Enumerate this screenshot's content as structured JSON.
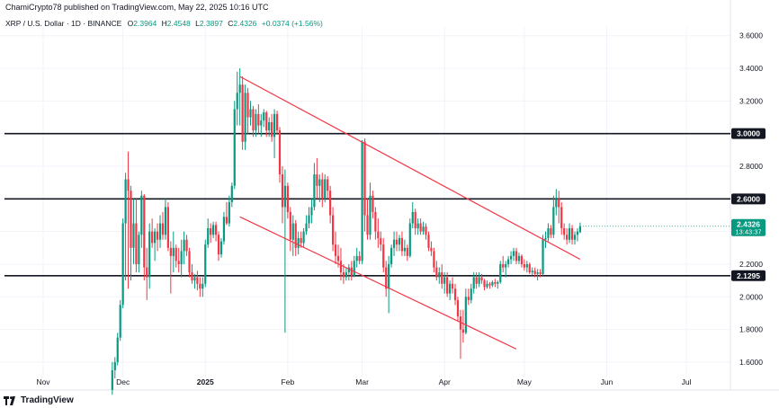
{
  "header": {
    "publisher": "ChamiCrypto78 published on TradingView.com, May 22, 2025 10:16 UTC",
    "symbol": "XRP / U.S. Dollar · 1D · BINANCE",
    "ohlc": [
      {
        "label": "O",
        "value": "2.3964"
      },
      {
        "label": "H",
        "value": "2.4548"
      },
      {
        "label": "L",
        "value": "2.3897"
      },
      {
        "label": "C",
        "value": "2.4326"
      }
    ],
    "change": "+0.0374 (+1.56%)"
  },
  "footer": {
    "brand": "TradingView"
  },
  "colors": {
    "up": "#089981",
    "down": "#f23645",
    "channel": "#f23645",
    "level": "#131722",
    "grid": "#f0f3fa",
    "axis_text": "#131722"
  },
  "chart_data": {
    "type": "candlestick",
    "y_ticks": [
      "3.6000",
      "3.4000",
      "3.2000",
      "3.0000",
      "2.8000",
      "2.6000",
      "2.4000",
      "2.2000",
      "2.0000",
      "1.8000",
      "1.6000"
    ],
    "ylim": [
      1.55,
      3.68
    ],
    "x_ticks": [
      "Nov",
      "Dec",
      "2025",
      "Feb",
      "Mar",
      "Apr",
      "May",
      "Jun",
      "Jul"
    ],
    "horizontal_levels": [
      {
        "value": 3.0,
        "label": "3.0000"
      },
      {
        "value": 2.6,
        "label": "2.6000"
      },
      {
        "value": 2.1295,
        "label": "2.1295"
      }
    ],
    "last_price": {
      "value": 2.4326,
      "label": "2.4326",
      "countdown": "13:43:37"
    },
    "channel_upper": [
      {
        "x": "2025-01-14",
        "y": 3.35
      },
      {
        "x": "2025-05-22",
        "y": 2.23
      }
    ],
    "channel_lower": [
      {
        "x": "2025-01-14",
        "y": 2.49
      },
      {
        "x": "2025-04-28",
        "y": 1.68
      }
    ],
    "candles": [
      [
        "2024-11-27",
        1.43,
        1.6,
        1.4,
        1.55
      ],
      [
        "2024-11-28",
        1.55,
        1.63,
        1.5,
        1.6
      ],
      [
        "2024-11-29",
        1.6,
        1.78,
        1.58,
        1.75
      ],
      [
        "2024-11-30",
        1.75,
        1.98,
        1.73,
        1.95
      ],
      [
        "2024-12-01",
        1.95,
        2.48,
        1.93,
        2.45
      ],
      [
        "2024-12-02",
        2.45,
        2.76,
        2.1,
        2.72
      ],
      [
        "2024-12-03",
        2.72,
        2.89,
        2.05,
        2.65
      ],
      [
        "2024-12-04",
        2.65,
        2.68,
        2.1,
        2.3
      ],
      [
        "2024-12-05",
        2.3,
        2.6,
        2.2,
        2.45
      ],
      [
        "2024-12-06",
        2.45,
        2.6,
        2.15,
        2.2
      ],
      [
        "2024-12-07",
        2.2,
        2.4,
        2.15,
        2.38
      ],
      [
        "2024-12-08",
        2.38,
        2.65,
        2.3,
        2.62
      ],
      [
        "2024-12-09",
        2.62,
        2.63,
        2.1,
        2.18
      ],
      [
        "2024-12-10",
        2.18,
        2.3,
        1.98,
        2.12
      ],
      [
        "2024-12-11",
        2.12,
        2.45,
        2.05,
        2.4
      ],
      [
        "2024-12-12",
        2.4,
        2.48,
        2.3,
        2.33
      ],
      [
        "2024-12-13",
        2.33,
        2.42,
        2.22,
        2.4
      ],
      [
        "2024-12-14",
        2.4,
        2.45,
        2.28,
        2.35
      ],
      [
        "2024-12-15",
        2.35,
        2.5,
        2.3,
        2.45
      ],
      [
        "2024-12-16",
        2.45,
        2.52,
        2.35,
        2.38
      ],
      [
        "2024-12-17",
        2.38,
        2.6,
        2.35,
        2.55
      ],
      [
        "2024-12-18",
        2.55,
        2.58,
        2.28,
        2.3
      ],
      [
        "2024-12-19",
        2.3,
        2.34,
        2.02,
        2.25
      ],
      [
        "2024-12-20",
        2.25,
        2.4,
        2.15,
        2.3
      ],
      [
        "2024-12-21",
        2.3,
        2.32,
        2.18,
        2.22
      ],
      [
        "2024-12-22",
        2.22,
        2.3,
        2.15,
        2.2
      ],
      [
        "2024-12-23",
        2.2,
        2.35,
        2.12,
        2.28
      ],
      [
        "2024-12-24",
        2.28,
        2.4,
        2.2,
        2.35
      ],
      [
        "2024-12-25",
        2.35,
        2.38,
        2.25,
        2.28
      ],
      [
        "2024-12-26",
        2.28,
        2.3,
        2.12,
        2.15
      ],
      [
        "2024-12-27",
        2.15,
        2.2,
        2.08,
        2.1
      ],
      [
        "2024-12-28",
        2.1,
        2.14,
        2.05,
        2.12
      ],
      [
        "2024-12-29",
        2.12,
        2.16,
        2.04,
        2.08
      ],
      [
        "2024-12-30",
        2.08,
        2.12,
        2.0,
        2.05
      ],
      [
        "2024-12-31",
        2.05,
        2.12,
        2.0,
        2.08
      ],
      [
        "2025-01-01",
        2.08,
        2.35,
        2.06,
        2.32
      ],
      [
        "2025-01-02",
        2.32,
        2.48,
        2.3,
        2.42
      ],
      [
        "2025-01-03",
        2.42,
        2.45,
        2.33,
        2.38
      ],
      [
        "2025-01-04",
        2.38,
        2.46,
        2.36,
        2.44
      ],
      [
        "2025-01-05",
        2.44,
        2.46,
        2.34,
        2.38
      ],
      [
        "2025-01-06",
        2.38,
        2.4,
        2.22,
        2.26
      ],
      [
        "2025-01-07",
        2.26,
        2.36,
        2.24,
        2.34
      ],
      [
        "2025-01-08",
        2.34,
        2.52,
        2.32,
        2.49
      ],
      [
        "2025-01-09",
        2.49,
        2.58,
        2.44,
        2.45
      ],
      [
        "2025-01-10",
        2.45,
        2.62,
        2.43,
        2.58
      ],
      [
        "2025-01-11",
        2.58,
        2.7,
        2.55,
        2.68
      ],
      [
        "2025-01-12",
        2.68,
        3.2,
        2.66,
        3.15
      ],
      [
        "2025-01-13",
        3.15,
        3.38,
        3.05,
        3.25
      ],
      [
        "2025-01-14",
        3.25,
        3.4,
        3.05,
        3.3
      ],
      [
        "2025-01-15",
        3.3,
        3.35,
        2.9,
        2.95
      ],
      [
        "2025-01-16",
        2.95,
        3.3,
        2.9,
        3.25
      ],
      [
        "2025-01-17",
        3.25,
        3.28,
        3.0,
        3.1
      ],
      [
        "2025-01-18",
        3.1,
        3.2,
        3.05,
        3.15
      ],
      [
        "2025-01-19",
        3.15,
        3.17,
        2.98,
        3.02
      ],
      [
        "2025-01-20",
        3.02,
        3.15,
        2.98,
        3.12
      ],
      [
        "2025-01-21",
        3.12,
        3.18,
        3.0,
        3.05
      ],
      [
        "2025-01-22",
        3.05,
        3.12,
        2.98,
        3.08
      ],
      [
        "2025-01-23",
        3.08,
        3.15,
        3.04,
        3.13
      ],
      [
        "2025-01-24",
        3.13,
        3.14,
        2.98,
        3.02
      ],
      [
        "2025-01-25",
        3.02,
        3.1,
        2.98,
        3.07
      ],
      [
        "2025-01-26",
        3.07,
        3.12,
        2.95,
        2.98
      ],
      [
        "2025-01-27",
        2.98,
        3.15,
        2.85,
        3.12
      ],
      [
        "2025-01-28",
        3.12,
        3.14,
        3.0,
        3.02
      ],
      [
        "2025-01-29",
        3.02,
        3.04,
        2.7,
        2.75
      ],
      [
        "2025-01-30",
        2.75,
        2.8,
        2.45,
        2.55
      ],
      [
        "2025-01-31",
        2.55,
        2.78,
        1.78,
        2.68
      ],
      [
        "2025-02-01",
        2.68,
        2.7,
        2.48,
        2.52
      ],
      [
        "2025-02-02",
        2.52,
        2.55,
        2.28,
        2.35
      ],
      [
        "2025-02-03",
        2.35,
        2.5,
        2.25,
        2.45
      ],
      [
        "2025-02-04",
        2.45,
        2.47,
        2.25,
        2.3
      ],
      [
        "2025-02-05",
        2.3,
        2.4,
        2.26,
        2.36
      ],
      [
        "2025-02-06",
        2.36,
        2.4,
        2.3,
        2.33
      ],
      [
        "2025-02-07",
        2.33,
        2.42,
        2.3,
        2.4
      ],
      [
        "2025-02-08",
        2.4,
        2.5,
        2.38,
        2.45
      ],
      [
        "2025-02-09",
        2.45,
        2.55,
        2.42,
        2.5
      ],
      [
        "2025-02-10",
        2.5,
        2.6,
        2.45,
        2.55
      ],
      [
        "2025-02-11",
        2.55,
        2.82,
        2.53,
        2.75
      ],
      [
        "2025-02-12",
        2.75,
        2.85,
        2.6,
        2.68
      ],
      [
        "2025-02-13",
        2.68,
        2.75,
        2.58,
        2.72
      ],
      [
        "2025-02-14",
        2.72,
        2.76,
        2.55,
        2.6
      ],
      [
        "2025-02-15",
        2.6,
        2.75,
        2.58,
        2.72
      ],
      [
        "2025-02-16",
        2.72,
        2.74,
        2.6,
        2.65
      ],
      [
        "2025-02-17",
        2.65,
        2.68,
        2.45,
        2.5
      ],
      [
        "2025-02-18",
        2.5,
        2.55,
        2.28,
        2.32
      ],
      [
        "2025-02-19",
        2.32,
        2.4,
        2.2,
        2.25
      ],
      [
        "2025-02-20",
        2.25,
        2.32,
        2.18,
        2.22
      ],
      [
        "2025-02-21",
        2.22,
        2.3,
        2.1,
        2.15
      ],
      [
        "2025-02-22",
        2.15,
        2.2,
        2.08,
        2.12
      ],
      [
        "2025-02-23",
        2.12,
        2.18,
        2.1,
        2.15
      ],
      [
        "2025-02-24",
        2.15,
        2.2,
        2.1,
        2.18
      ],
      [
        "2025-02-25",
        2.18,
        2.22,
        2.1,
        2.13
      ],
      [
        "2025-02-26",
        2.13,
        2.25,
        2.12,
        2.22
      ],
      [
        "2025-02-27",
        2.22,
        2.3,
        2.18,
        2.25
      ],
      [
        "2025-02-28",
        2.25,
        2.28,
        2.2,
        2.22
      ],
      [
        "2025-03-01",
        2.22,
        2.96,
        2.2,
        2.95
      ],
      [
        "2025-03-02",
        2.95,
        2.97,
        2.4,
        2.5
      ],
      [
        "2025-03-03",
        2.5,
        2.6,
        2.35,
        2.38
      ],
      [
        "2025-03-04",
        2.38,
        2.7,
        2.35,
        2.62
      ],
      [
        "2025-03-05",
        2.62,
        2.65,
        2.48,
        2.52
      ],
      [
        "2025-03-06",
        2.52,
        2.55,
        2.35,
        2.4
      ],
      [
        "2025-03-07",
        2.4,
        2.48,
        2.3,
        2.36
      ],
      [
        "2025-03-08",
        2.36,
        2.4,
        2.28,
        2.32
      ],
      [
        "2025-03-09",
        2.32,
        2.36,
        2.15,
        2.18
      ],
      [
        "2025-03-10",
        2.18,
        2.22,
        2.0,
        2.05
      ],
      [
        "2025-03-11",
        2.05,
        2.25,
        1.9,
        2.2
      ],
      [
        "2025-03-12",
        2.2,
        2.32,
        2.18,
        2.3
      ],
      [
        "2025-03-13",
        2.3,
        2.4,
        2.25,
        2.35
      ],
      [
        "2025-03-14",
        2.35,
        2.4,
        2.28,
        2.32
      ],
      [
        "2025-03-15",
        2.32,
        2.38,
        2.28,
        2.36
      ],
      [
        "2025-03-16",
        2.36,
        2.4,
        2.25,
        2.28
      ],
      [
        "2025-03-17",
        2.28,
        2.35,
        2.25,
        2.3
      ],
      [
        "2025-03-18",
        2.3,
        2.32,
        2.22,
        2.25
      ],
      [
        "2025-03-19",
        2.25,
        2.48,
        2.24,
        2.45
      ],
      [
        "2025-03-20",
        2.45,
        2.58,
        2.42,
        2.52
      ],
      [
        "2025-03-21",
        2.52,
        2.54,
        2.38,
        2.42
      ],
      [
        "2025-03-22",
        2.42,
        2.48,
        2.38,
        2.45
      ],
      [
        "2025-03-23",
        2.45,
        2.48,
        2.38,
        2.4
      ],
      [
        "2025-03-24",
        2.4,
        2.46,
        2.38,
        2.43
      ],
      [
        "2025-03-25",
        2.43,
        2.45,
        2.35,
        2.38
      ],
      [
        "2025-03-26",
        2.38,
        2.4,
        2.28,
        2.3
      ],
      [
        "2025-03-27",
        2.3,
        2.34,
        2.25,
        2.28
      ],
      [
        "2025-03-28",
        2.28,
        2.3,
        2.15,
        2.18
      ],
      [
        "2025-03-29",
        2.18,
        2.22,
        2.1,
        2.12
      ],
      [
        "2025-03-30",
        2.12,
        2.18,
        2.08,
        2.15
      ],
      [
        "2025-03-31",
        2.15,
        2.2,
        2.05,
        2.08
      ],
      [
        "2025-04-01",
        2.08,
        2.15,
        2.02,
        2.12
      ],
      [
        "2025-04-02",
        2.12,
        2.15,
        2.0,
        2.02
      ],
      [
        "2025-04-03",
        2.02,
        2.1,
        1.98,
        2.08
      ],
      [
        "2025-04-04",
        2.08,
        2.12,
        2.02,
        2.05
      ],
      [
        "2025-04-05",
        2.05,
        2.08,
        1.95,
        1.98
      ],
      [
        "2025-04-06",
        1.98,
        2.0,
        1.85,
        1.88
      ],
      [
        "2025-04-07",
        1.88,
        1.92,
        1.62,
        1.8
      ],
      [
        "2025-04-08",
        1.8,
        1.92,
        1.72,
        1.78
      ],
      [
        "2025-04-09",
        1.78,
        2.05,
        1.77,
        2.0
      ],
      [
        "2025-04-10",
        2.0,
        2.05,
        1.95,
        1.98
      ],
      [
        "2025-04-11",
        1.98,
        2.08,
        1.96,
        2.05
      ],
      [
        "2025-04-12",
        2.05,
        2.15,
        2.02,
        2.12
      ],
      [
        "2025-04-13",
        2.12,
        2.15,
        2.05,
        2.08
      ],
      [
        "2025-04-14",
        2.08,
        2.15,
        2.06,
        2.12
      ],
      [
        "2025-04-15",
        2.12,
        2.14,
        2.08,
        2.1
      ],
      [
        "2025-04-16",
        2.1,
        2.11,
        2.04,
        2.06
      ],
      [
        "2025-04-17",
        2.06,
        2.1,
        2.05,
        2.08
      ],
      [
        "2025-04-18",
        2.08,
        2.09,
        2.05,
        2.07
      ],
      [
        "2025-04-19",
        2.07,
        2.1,
        2.06,
        2.09
      ],
      [
        "2025-04-20",
        2.09,
        2.11,
        2.06,
        2.08
      ],
      [
        "2025-04-21",
        2.08,
        2.1,
        2.05,
        2.09
      ],
      [
        "2025-04-22",
        2.09,
        2.22,
        2.08,
        2.2
      ],
      [
        "2025-04-23",
        2.2,
        2.25,
        2.15,
        2.18
      ],
      [
        "2025-04-24",
        2.18,
        2.22,
        2.12,
        2.2
      ],
      [
        "2025-04-25",
        2.2,
        2.25,
        2.18,
        2.23
      ],
      [
        "2025-04-26",
        2.23,
        2.28,
        2.2,
        2.25
      ],
      [
        "2025-04-27",
        2.25,
        2.3,
        2.22,
        2.28
      ],
      [
        "2025-04-28",
        2.28,
        2.3,
        2.2,
        2.22
      ],
      [
        "2025-04-29",
        2.22,
        2.27,
        2.2,
        2.25
      ],
      [
        "2025-04-30",
        2.25,
        2.26,
        2.18,
        2.2
      ],
      [
        "2025-05-01",
        2.2,
        2.23,
        2.16,
        2.18
      ],
      [
        "2025-05-02",
        2.18,
        2.22,
        2.15,
        2.2
      ],
      [
        "2025-05-03",
        2.2,
        2.21,
        2.14,
        2.15
      ],
      [
        "2025-05-04",
        2.15,
        2.18,
        2.13,
        2.16
      ],
      [
        "2025-05-05",
        2.16,
        2.18,
        2.12,
        2.14
      ],
      [
        "2025-05-06",
        2.14,
        2.17,
        2.1,
        2.15
      ],
      [
        "2025-05-07",
        2.15,
        2.17,
        2.12,
        2.14
      ],
      [
        "2025-05-08",
        2.14,
        2.38,
        2.13,
        2.35
      ],
      [
        "2025-05-09",
        2.35,
        2.4,
        2.3,
        2.36
      ],
      [
        "2025-05-10",
        2.36,
        2.45,
        2.34,
        2.42
      ],
      [
        "2025-05-11",
        2.42,
        2.44,
        2.36,
        2.38
      ],
      [
        "2025-05-12",
        2.38,
        2.62,
        2.36,
        2.55
      ],
      [
        "2025-05-13",
        2.55,
        2.66,
        2.5,
        2.6
      ],
      [
        "2025-05-14",
        2.6,
        2.65,
        2.45,
        2.55
      ],
      [
        "2025-05-15",
        2.55,
        2.58,
        2.38,
        2.42
      ],
      [
        "2025-05-16",
        2.42,
        2.45,
        2.35,
        2.38
      ],
      [
        "2025-05-17",
        2.38,
        2.42,
        2.32,
        2.35
      ],
      [
        "2025-05-18",
        2.35,
        2.45,
        2.33,
        2.42
      ],
      [
        "2025-05-19",
        2.42,
        2.44,
        2.32,
        2.35
      ],
      [
        "2025-05-20",
        2.35,
        2.4,
        2.32,
        2.38
      ],
      [
        "2025-05-21",
        2.38,
        2.42,
        2.34,
        2.4
      ],
      [
        "2025-05-22",
        2.3964,
        2.4548,
        2.3897,
        2.4326
      ]
    ]
  }
}
